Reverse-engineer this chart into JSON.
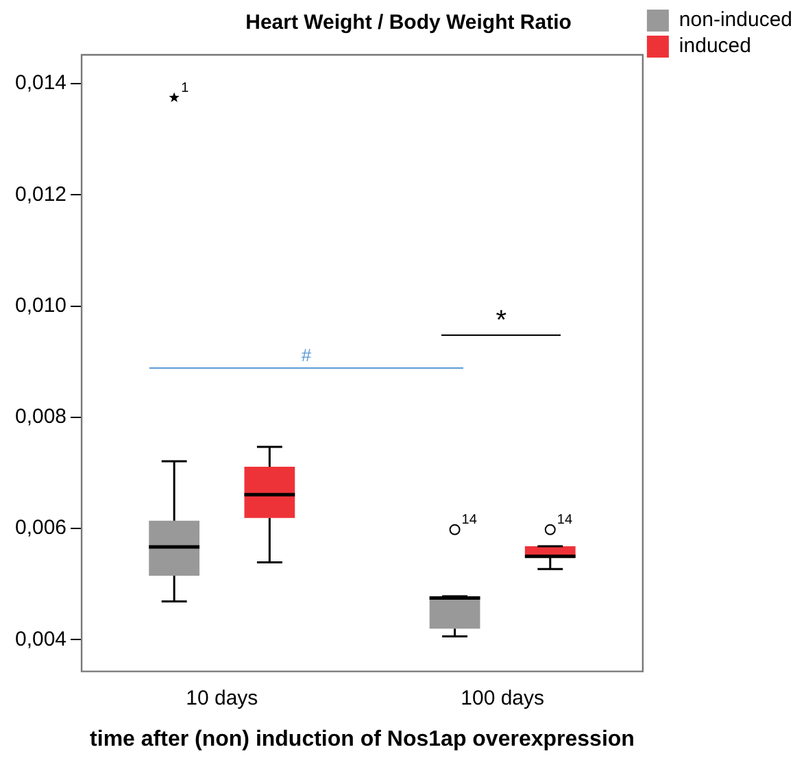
{
  "chart_data": {
    "type": "box",
    "title": "Heart Weight / Body Weight Ratio",
    "xlabel": "time after (non) induction of Nos1ap overexpression",
    "categories": [
      "10 days",
      "100 days"
    ],
    "series": [
      {
        "name": "non-induced",
        "color": "#999999",
        "boxes": [
          {
            "low": 0.00469,
            "q1": 0.00515,
            "median": 0.00567,
            "q3": 0.00614,
            "high": 0.00721,
            "outliers": [
              0.01375
            ]
          },
          {
            "low": 0.00406,
            "q1": 0.0042,
            "median": 0.00475,
            "q3": 0.00478,
            "high": 0.00478,
            "outliers": [
              0.00598
            ]
          }
        ]
      },
      {
        "name": "induced",
        "color": "#ee3338",
        "boxes": [
          {
            "low": 0.00539,
            "q1": 0.00619,
            "median": 0.00661,
            "q3": 0.00711,
            "high": 0.00747
          },
          {
            "low": 0.00527,
            "q1": 0.00548,
            "median": 0.0055,
            "q3": 0.00568,
            "high": 0.00568,
            "outliers": [
              0.00598
            ]
          }
        ]
      }
    ],
    "ylim": [
      0.00343,
      0.01452
    ],
    "yticks": [
      {
        "value": 0.004,
        "label": "0,004"
      },
      {
        "value": 0.006,
        "label": "0,006"
      },
      {
        "value": 0.008,
        "label": "0,008"
      },
      {
        "value": 0.01,
        "label": "0,010"
      },
      {
        "value": 0.012,
        "label": "0,012"
      },
      {
        "value": 0.014,
        "label": "0,014"
      }
    ],
    "grid": false,
    "legend": "top right",
    "annotations": [
      "1",
      "14",
      "14",
      "#",
      "*"
    ]
  }
}
